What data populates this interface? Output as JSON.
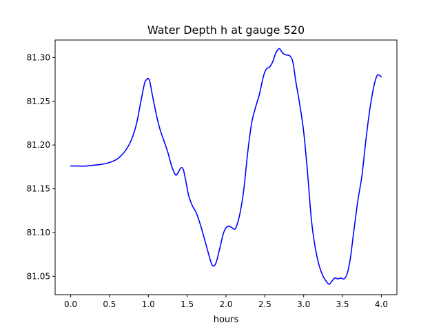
{
  "chart_data": {
    "type": "line",
    "title": "Water Depth h at gauge 520",
    "xlabel": "hours",
    "ylabel": "",
    "xlim": [
      -0.2,
      4.2
    ],
    "ylim": [
      81.029,
      81.32
    ],
    "x_ticks": [
      0.0,
      0.5,
      1.0,
      1.5,
      2.0,
      2.5,
      3.0,
      3.5,
      4.0
    ],
    "x_tick_labels": [
      "0.0",
      "0.5",
      "1.0",
      "1.5",
      "2.0",
      "2.5",
      "3.0",
      "3.5",
      "4.0"
    ],
    "y_ticks": [
      81.05,
      81.1,
      81.15,
      81.2,
      81.25,
      81.3
    ],
    "y_tick_labels": [
      "81.05",
      "81.10",
      "81.15",
      "81.20",
      "81.25",
      "81.30"
    ],
    "grid": false,
    "legend": "none",
    "series": [
      {
        "color": "#0000ff",
        "x": [
          0.0,
          0.1,
          0.2,
          0.3,
          0.4,
          0.5,
          0.6,
          0.65,
          0.7,
          0.75,
          0.8,
          0.85,
          0.9,
          0.95,
          0.98,
          1.0,
          1.02,
          1.05,
          1.1,
          1.15,
          1.2,
          1.25,
          1.3,
          1.35,
          1.38,
          1.42,
          1.45,
          1.48,
          1.52,
          1.57,
          1.62,
          1.68,
          1.74,
          1.8,
          1.83,
          1.87,
          1.92,
          1.97,
          2.02,
          2.07,
          2.1,
          2.13,
          2.18,
          2.23,
          2.28,
          2.33,
          2.38,
          2.43,
          2.48,
          2.52,
          2.56,
          2.6,
          2.64,
          2.68,
          2.7,
          2.73,
          2.77,
          2.82,
          2.86,
          2.9,
          2.95,
          3.0,
          3.05,
          3.1,
          3.15,
          3.2,
          3.25,
          3.3,
          3.33,
          3.36,
          3.4,
          3.44,
          3.48,
          3.52,
          3.56,
          3.6,
          3.65,
          3.7,
          3.75,
          3.8,
          3.85,
          3.9,
          3.93,
          3.95,
          3.97,
          4.0
        ],
        "y": [
          81.176,
          81.176,
          81.176,
          81.177,
          81.178,
          81.18,
          81.184,
          81.188,
          81.193,
          81.2,
          81.21,
          81.225,
          81.248,
          81.27,
          81.275,
          81.276,
          81.272,
          81.258,
          81.236,
          81.218,
          81.205,
          81.192,
          81.176,
          81.166,
          81.168,
          81.174,
          81.172,
          81.16,
          81.142,
          81.13,
          81.122,
          81.106,
          81.087,
          81.068,
          81.062,
          81.065,
          81.082,
          81.1,
          81.107,
          81.106,
          81.104,
          81.106,
          81.122,
          81.15,
          81.192,
          81.225,
          81.243,
          81.258,
          81.278,
          81.287,
          81.289,
          81.295,
          81.305,
          81.31,
          81.309,
          81.305,
          81.303,
          81.302,
          81.295,
          81.272,
          81.246,
          81.215,
          81.168,
          81.114,
          81.082,
          81.062,
          81.05,
          81.043,
          81.041,
          81.044,
          81.048,
          81.047,
          81.048,
          81.047,
          81.053,
          81.07,
          81.105,
          81.138,
          81.165,
          81.205,
          81.24,
          81.266,
          81.276,
          81.28,
          81.28,
          81.278
        ]
      }
    ]
  }
}
